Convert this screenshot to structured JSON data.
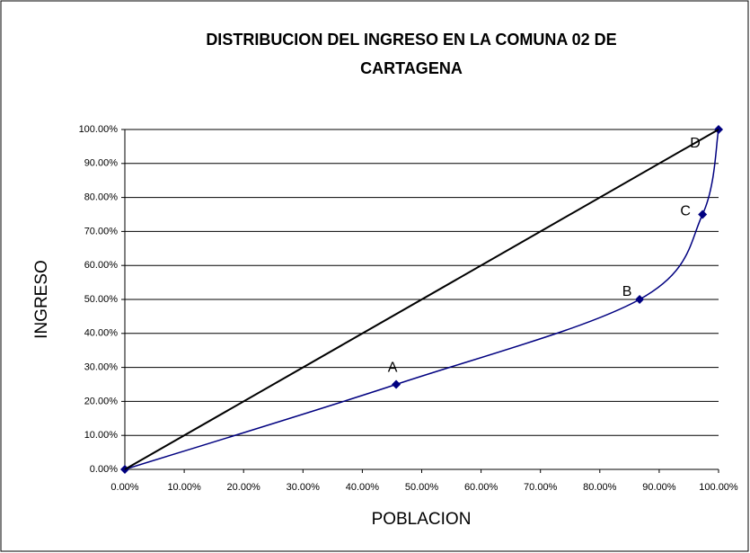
{
  "chart_data": {
    "type": "line",
    "title": "DISTRIBUCION DEL INGRESO EN LA COMUNA 02 DE CARTAGENA",
    "x_label": "POBLACION",
    "y_label": "INGRESO",
    "series": [
      {
        "color": "#000080",
        "marker": "diamond",
        "smooth": true,
        "x": [
          0,
          45.7,
          86.7,
          97.3,
          100
        ],
        "values": [
          0,
          25,
          50,
          75,
          100
        ],
        "labels": [
          null,
          "A",
          "B",
          "C",
          "D"
        ]
      },
      {
        "color": "#000000",
        "x": [
          0,
          100
        ],
        "values": [
          0,
          100
        ]
      }
    ],
    "xlim": [
      0,
      100
    ],
    "ylim": [
      0,
      100
    ],
    "xticks": [
      {
        "value": 0,
        "label": "0.00%"
      },
      {
        "value": 10,
        "label": "10.00%"
      },
      {
        "value": 20,
        "label": "20.00%"
      },
      {
        "value": 30,
        "label": "30.00%"
      },
      {
        "value": 40,
        "label": "40.00%"
      },
      {
        "value": 50,
        "label": "50.00%"
      },
      {
        "value": 60,
        "label": "60.00%"
      },
      {
        "value": 70,
        "label": "70.00%"
      },
      {
        "value": 80,
        "label": "80.00%"
      },
      {
        "value": 90,
        "label": "90.00%"
      },
      {
        "value": 100,
        "label": "100.00%"
      }
    ],
    "yticks": [
      {
        "value": 0,
        "label": "0.00%"
      },
      {
        "value": 10,
        "label": "10.00%"
      },
      {
        "value": 20,
        "label": "20.00%"
      },
      {
        "value": 30,
        "label": "30.00%"
      },
      {
        "value": 40,
        "label": "40.00%"
      },
      {
        "value": 50,
        "label": "50.00%"
      },
      {
        "value": 60,
        "label": "60.00%"
      },
      {
        "value": 70,
        "label": "70.00%"
      },
      {
        "value": 80,
        "label": "80.00%"
      },
      {
        "value": 90,
        "label": "90.00%"
      },
      {
        "value": 100,
        "label": "100.00%"
      }
    ],
    "grid": true
  }
}
